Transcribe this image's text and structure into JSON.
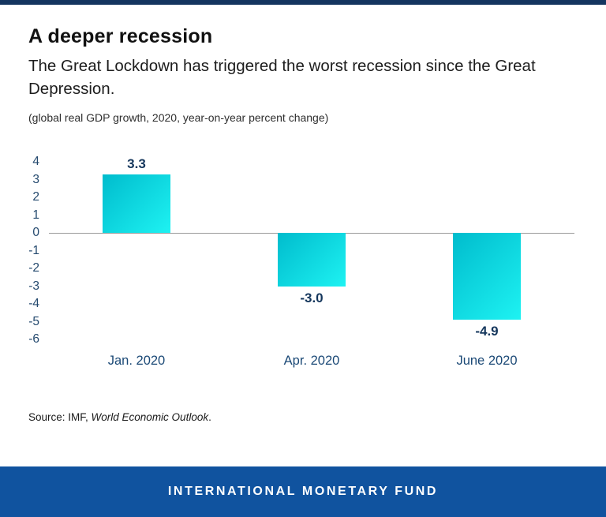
{
  "header": {
    "title": "A deeper recession",
    "subtitle": "The Great Lockdown has triggered the worst recession since the Great Depression.",
    "note": "(global real GDP growth, 2020, year-on-year percent change)"
  },
  "chart_data": {
    "type": "bar",
    "categories": [
      "Jan. 2020",
      "Apr. 2020",
      "June 2020"
    ],
    "values": [
      3.3,
      -3.0,
      -4.9
    ],
    "value_labels": [
      "3.3",
      "-3.0",
      "-4.9"
    ],
    "title": "A deeper recession",
    "xlabel": "",
    "ylabel": "",
    "ylim": [
      -6,
      4
    ],
    "yticks": [
      4,
      3,
      2,
      1,
      0,
      -1,
      -2,
      -3,
      -4,
      -5,
      -6
    ],
    "grid": false,
    "legend": false,
    "bar_color_start": "#00bccd",
    "bar_color_end": "#1ef2f2"
  },
  "source": {
    "prefix": "Source: IMF, ",
    "italic": "World Economic Outlook",
    "suffix": "."
  },
  "footer": {
    "label": "INTERNATIONAL MONETARY FUND",
    "background": "#10539f"
  },
  "colors": {
    "top_border": "#14355f",
    "axis_text": "#24496e",
    "value_label_text": "#14365c",
    "category_text": "#1b4976"
  }
}
